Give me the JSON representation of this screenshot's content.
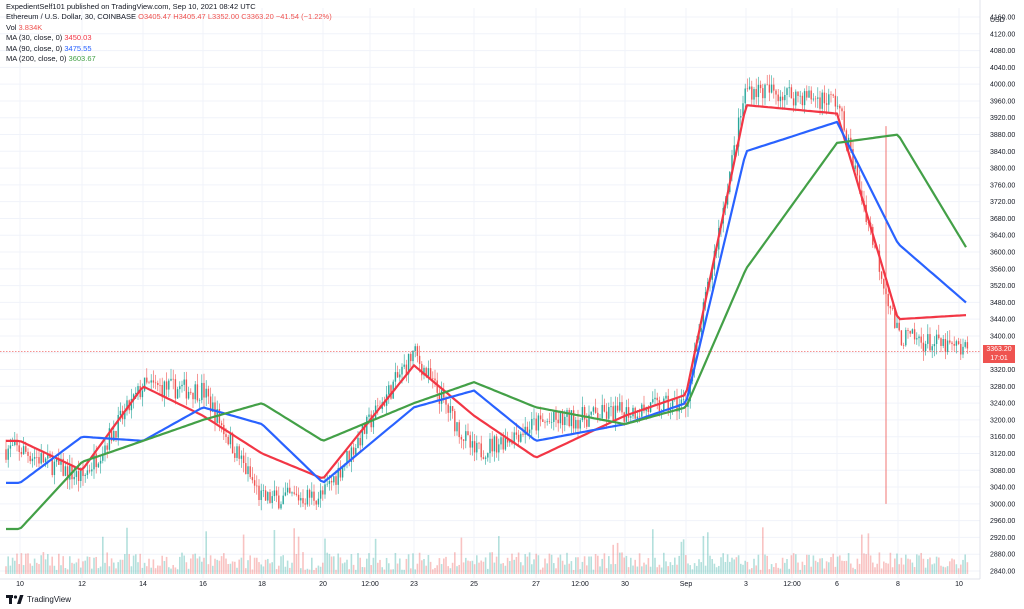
{
  "header": {
    "published": "ExpedientSelf101 published on TradingView.com, Sep 10, 2021 08:42 UTC",
    "symbol": "Ethereum / U.S. Dollar, 30, COINBASE",
    "ohlc_o": "O3405.47",
    "ohlc_h": "H3405.47",
    "ohlc_l": "L3352.00",
    "ohlc_c": "C3363.20",
    "change": "−41.54 (−1.22%)",
    "vol_label": "Vol",
    "vol_value": "3.834K",
    "ma30_label": "MA (30, close, 0)",
    "ma30_value": "3450.03",
    "ma90_label": "MA (90, close, 0)",
    "ma90_value": "3475.55",
    "ma200_label": "MA (200, close, 0)",
    "ma200_value": "3603.67"
  },
  "price_tag": {
    "price": "3363.20",
    "time": "17:01"
  },
  "brand": {
    "name": "TradingView"
  },
  "chart_data": {
    "type": "line",
    "title": "Ethereum / U.S. Dollar, 30, COINBASE",
    "currency": "USD",
    "y_ticks": [
      "4160.00",
      "4120.00",
      "4080.00",
      "4040.00",
      "4000.00",
      "3960.00",
      "3920.00",
      "3880.00",
      "3840.00",
      "3800.00",
      "3760.00",
      "3720.00",
      "3680.00",
      "3640.00",
      "3600.00",
      "3560.00",
      "3520.00",
      "3480.00",
      "3440.00",
      "3400.00",
      "3360.00",
      "3320.00",
      "3280.00",
      "3240.00",
      "3200.00",
      "3160.00",
      "3120.00",
      "3080.00",
      "3040.00",
      "3000.00",
      "2960.00",
      "2920.00",
      "2880.00",
      "2840.00"
    ],
    "x_ticks": [
      "10",
      "12",
      "14",
      "16",
      "18",
      "20",
      "12:00",
      "23",
      "25",
      "27",
      "12:00",
      "30",
      "Sep",
      "3",
      "12:00",
      "6",
      "8",
      "10"
    ],
    "ylim": [
      2820,
      4180
    ],
    "grid": true,
    "last_price": 3363.2,
    "series": [
      {
        "name": "Ethereum / U.S. Dollar",
        "x": [
          "10",
          "12",
          "14",
          "16",
          "18",
          "20",
          "23",
          "25",
          "27",
          "30",
          "Sep",
          "3",
          "6",
          "8",
          "10"
        ],
        "values": [
          3130,
          3060,
          3280,
          3270,
          3010,
          3020,
          3360,
          3120,
          3190,
          3220,
          3240,
          3990,
          3960,
          3400,
          3363.2
        ]
      },
      {
        "name": "MA (30, close, 0)",
        "x": [
          "10",
          "12",
          "14",
          "16",
          "18",
          "20",
          "23",
          "25",
          "27",
          "30",
          "Sep",
          "3",
          "6",
          "8",
          "10"
        ],
        "values": [
          3150,
          3080,
          3280,
          3210,
          3120,
          3060,
          3330,
          3210,
          3110,
          3210,
          3260,
          3950,
          3930,
          3440,
          3450.03
        ]
      },
      {
        "name": "MA (90, close, 0)",
        "x": [
          "10",
          "12",
          "14",
          "16",
          "18",
          "20",
          "23",
          "25",
          "27",
          "30",
          "Sep",
          "3",
          "6",
          "8",
          "10"
        ],
        "values": [
          3050,
          3160,
          3150,
          3230,
          3190,
          3050,
          3230,
          3270,
          3150,
          3190,
          3240,
          3840,
          3910,
          3620,
          3475.55
        ]
      },
      {
        "name": "MA (200, close, 0)",
        "x": [
          "10",
          "12",
          "14",
          "16",
          "18",
          "20",
          "23",
          "25",
          "27",
          "30",
          "Sep",
          "3",
          "6",
          "8",
          "10"
        ],
        "values": [
          2940,
          3100,
          3150,
          3200,
          3240,
          3150,
          3240,
          3290,
          3230,
          3190,
          3230,
          3560,
          3860,
          3880,
          3603.67
        ]
      }
    ],
    "colors": {
      "ma30": "#f23645",
      "ma90": "#2962ff",
      "ma200": "#43a047",
      "up": "#26a69a",
      "down": "#ef5350",
      "last_price_line": "#ef5350"
    }
  }
}
